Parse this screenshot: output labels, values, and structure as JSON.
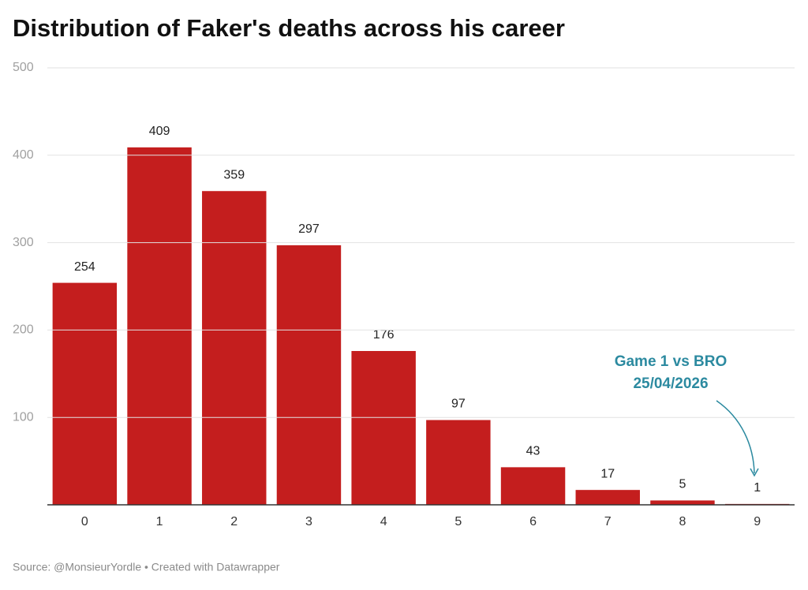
{
  "chart_data": {
    "type": "bar",
    "title": "Distribution of Faker's deaths across his career",
    "categories": [
      "0",
      "1",
      "2",
      "3",
      "4",
      "5",
      "6",
      "7",
      "8",
      "9"
    ],
    "values": [
      254,
      409,
      359,
      297,
      176,
      97,
      43,
      17,
      5,
      1
    ],
    "color": "#c41e1e",
    "ylim": [
      0,
      500
    ],
    "yticks": [
      100,
      200,
      300,
      400,
      500
    ],
    "grid": true,
    "annotation": [
      "Game 1 vs BRO",
      "25/04/2026"
    ],
    "source": "Source: @MonsieurYordle • Created with Datawrapper"
  }
}
